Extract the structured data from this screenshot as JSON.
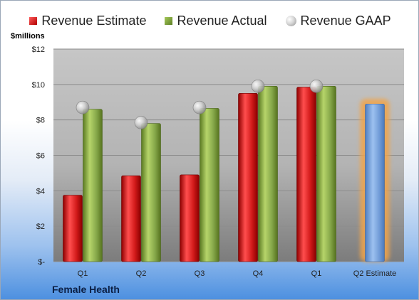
{
  "legend": {
    "estimate": "Revenue Estimate",
    "actual": "Revenue Actual",
    "gaap": "Revenue GAAP"
  },
  "unit_label": "$millions",
  "company": "Female Health",
  "colors": {
    "estimate": "#c81818",
    "actual": "#86a84a",
    "gaap": "#c0c0c0",
    "forecast": "#6f9ad6",
    "forecast_glow": "#f2a44a"
  },
  "chart_data": {
    "type": "bar",
    "title": "",
    "xlabel": "",
    "ylabel": "$millions",
    "ylim": [
      0,
      12
    ],
    "y_ticks": [
      0,
      2,
      4,
      6,
      8,
      10,
      12
    ],
    "y_tick_labels": [
      "$-",
      "$2",
      "$4",
      "$6",
      "$8",
      "$10",
      "$12"
    ],
    "categories": [
      "Q1",
      "Q2",
      "Q3",
      "Q4",
      "Q1",
      "Q2 Estimate"
    ],
    "series": [
      {
        "name": "Revenue Estimate",
        "values": [
          3.75,
          4.85,
          4.9,
          9.5,
          9.85,
          null
        ]
      },
      {
        "name": "Revenue Actual",
        "values": [
          8.6,
          7.8,
          8.65,
          9.9,
          9.9,
          null
        ]
      },
      {
        "name": "Revenue GAAP",
        "values": [
          8.7,
          7.85,
          8.7,
          9.9,
          9.9,
          null
        ]
      }
    ],
    "forecast": {
      "category": "Q2 Estimate",
      "value": 8.9
    },
    "grid": true,
    "legend_position": "top"
  }
}
